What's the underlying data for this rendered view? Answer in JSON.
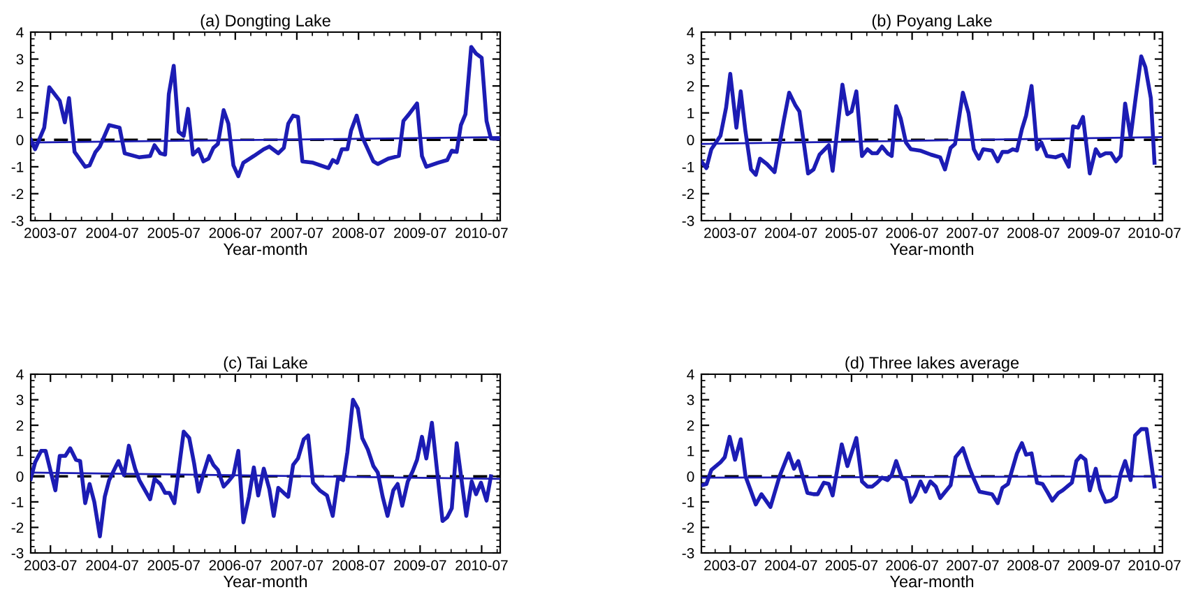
{
  "chart_data": [
    {
      "type": "line",
      "title": "(a) Dongting Lake",
      "xlabel": "Year-month",
      "xlim": [
        "2003-03-06",
        "2010-10-19"
      ],
      "ylim": [
        -3,
        4
      ],
      "yticks": [
        -3,
        -2,
        -1,
        0,
        1,
        2,
        3,
        4
      ],
      "xticks": [
        {
          "value": "2003-07-01",
          "label": "2003-07"
        },
        {
          "value": "2004-07-01",
          "label": "2004-07"
        },
        {
          "value": "2005-07-01",
          "label": "2005-07"
        },
        {
          "value": "2006-07-01",
          "label": "2006-07"
        },
        {
          "value": "2007-07-01",
          "label": "2007-07"
        },
        {
          "value": "2008-07-01",
          "label": "2008-07"
        },
        {
          "value": "2009-07-01",
          "label": "2009-07"
        },
        {
          "value": "2010-07-01",
          "label": "2010-07"
        }
      ],
      "ref_lines": [
        {
          "axis": "y",
          "value": 0,
          "color": "#000000",
          "line_style": "dashed"
        }
      ],
      "series": [
        {
          "color": "#1c1cb4",
          "x": [
            "2003-03-06",
            "2003-04-01",
            "2003-05-25",
            "2003-06-24",
            "2003-08-25",
            "2003-09-24",
            "2003-10-19",
            "2003-11-21",
            "2004-01-23",
            "2004-02-18",
            "2004-03-24",
            "2004-04-19",
            "2004-06-13",
            "2004-08-14",
            "2004-09-13",
            "2004-12-09",
            "2005-02-11",
            "2005-03-09",
            "2005-04-12",
            "2005-05-11",
            "2005-06-02",
            "2005-07-01",
            "2005-07-30",
            "2005-08-29",
            "2005-09-24",
            "2005-10-23",
            "2005-11-25",
            "2005-12-24",
            "2006-01-23",
            "2006-02-21",
            "2006-03-20",
            "2006-04-23",
            "2006-05-21",
            "2006-06-20",
            "2006-07-19",
            "2006-08-18",
            "2006-10-19",
            "2006-12-17",
            "2007-01-19",
            "2007-03-13",
            "2007-04-15",
            "2007-05-11",
            "2007-06-09",
            "2007-07-08",
            "2007-08-03",
            "2007-10-05",
            "2008-01-05",
            "2008-01-30",
            "2008-02-25",
            "2008-03-24",
            "2008-04-26",
            "2008-05-18",
            "2008-06-20",
            "2008-07-23",
            "2008-09-27",
            "2008-10-23",
            "2008-12-24",
            "2009-02-25",
            "2009-03-24",
            "2009-04-26",
            "2009-06-13",
            "2009-07-12",
            "2009-08-07",
            "2009-10-15",
            "2009-12-09",
            "2010-01-05",
            "2010-02-03",
            "2010-02-28",
            "2010-03-27",
            "2010-04-30",
            "2010-05-29",
            "2010-07-01",
            "2010-07-30",
            "2010-08-25",
            "2010-10-05"
          ],
          "values": [
            0.0,
            -0.35,
            0.45,
            1.95,
            1.45,
            0.65,
            1.55,
            -0.45,
            -1.0,
            -0.95,
            -0.45,
            -0.25,
            0.55,
            0.45,
            -0.5,
            -0.65,
            -0.6,
            -0.2,
            -0.5,
            -0.55,
            1.7,
            2.75,
            0.3,
            0.15,
            1.15,
            -0.55,
            -0.35,
            -0.8,
            -0.7,
            -0.3,
            -0.15,
            1.1,
            0.6,
            -0.95,
            -1.35,
            -0.85,
            -0.6,
            -0.35,
            -0.25,
            -0.5,
            -0.3,
            0.6,
            0.9,
            0.85,
            -0.8,
            -0.85,
            -1.05,
            -0.75,
            -0.85,
            -0.35,
            -0.35,
            0.35,
            0.9,
            0.1,
            -0.8,
            -0.9,
            -0.7,
            -0.6,
            0.7,
            0.95,
            1.35,
            -0.6,
            -1.0,
            -0.85,
            -0.75,
            -0.4,
            -0.45,
            0.55,
            0.95,
            3.45,
            3.2,
            3.05,
            0.7,
            0.05,
            0.05
          ]
        },
        {
          "type": "line",
          "color": "#1c1cb4",
          "x": [
            "2003-03-06",
            "2010-10-19"
          ],
          "values": [
            -0.1,
            0.1
          ]
        }
      ]
    },
    {
      "type": "line",
      "title": "(b) Poyang Lake",
      "xlabel": "Year-month",
      "xlim": [
        "2003-01-08",
        "2010-08-18"
      ],
      "ylim": [
        -3,
        4
      ],
      "yticks": [
        -3,
        -2,
        -1,
        0,
        1,
        2,
        3,
        4
      ],
      "xticks": [
        {
          "value": "2003-07-01",
          "label": "2003-07"
        },
        {
          "value": "2004-07-01",
          "label": "2004-07"
        },
        {
          "value": "2005-07-01",
          "label": "2005-07"
        },
        {
          "value": "2006-07-01",
          "label": "2006-07"
        },
        {
          "value": "2007-07-01",
          "label": "2007-07"
        },
        {
          "value": "2008-07-01",
          "label": "2008-07"
        },
        {
          "value": "2009-07-01",
          "label": "2009-07"
        },
        {
          "value": "2010-07-01",
          "label": "2010-07"
        }
      ],
      "ref_lines": [
        {
          "axis": "y",
          "value": 0,
          "color": "#000000",
          "line_style": "dashed"
        }
      ],
      "series": [
        {
          "color": "#1c1cb4",
          "x": [
            "2003-01-08",
            "2003-02-07",
            "2003-03-09",
            "2003-05-03",
            "2003-06-06",
            "2003-07-01",
            "2003-08-07",
            "2003-09-02",
            "2003-10-01",
            "2003-11-03",
            "2003-12-02",
            "2003-12-27",
            "2004-02-07",
            "2004-03-24",
            "2004-05-18",
            "2004-06-20",
            "2004-07-26",
            "2004-08-21",
            "2004-10-12",
            "2004-11-14",
            "2004-12-20",
            "2005-02-14",
            "2005-03-09",
            "2005-05-07",
            "2005-06-06",
            "2005-07-01",
            "2005-07-30",
            "2005-09-02",
            "2005-10-05",
            "2005-11-03",
            "2005-12-02",
            "2006-01-01",
            "2006-02-03",
            "2006-02-28",
            "2006-03-27",
            "2006-04-23",
            "2006-05-25",
            "2006-06-24",
            "2006-08-18",
            "2006-10-23",
            "2006-12-17",
            "2007-01-15",
            "2007-02-18",
            "2007-03-17",
            "2007-05-03",
            "2007-06-06",
            "2007-07-08",
            "2007-08-07",
            "2007-09-02",
            "2007-10-26",
            "2007-11-29",
            "2007-12-27",
            "2008-01-30",
            "2008-02-28",
            "2008-03-24",
            "2008-04-23",
            "2008-05-18",
            "2008-06-20",
            "2008-07-23",
            "2008-08-18",
            "2008-09-20",
            "2008-11-11",
            "2008-12-24",
            "2009-01-30",
            "2009-02-25",
            "2009-03-27",
            "2009-04-26",
            "2009-06-06",
            "2009-07-12",
            "2009-08-07",
            "2009-09-09",
            "2009-10-12",
            "2009-11-11",
            "2009-12-09",
            "2010-01-05",
            "2010-02-07",
            "2010-03-06",
            "2010-04-12",
            "2010-05-07",
            "2010-06-09",
            "2010-07-01"
          ],
          "values": [
            -0.8,
            -1.05,
            -0.35,
            0.15,
            1.2,
            2.45,
            0.45,
            1.8,
            0.3,
            -1.1,
            -1.3,
            -0.7,
            -0.9,
            -1.2,
            0.7,
            1.75,
            1.3,
            1.05,
            -1.25,
            -1.1,
            -0.55,
            -0.2,
            -1.15,
            2.05,
            0.95,
            1.05,
            1.8,
            -0.6,
            -0.35,
            -0.5,
            -0.5,
            -0.25,
            -0.5,
            -0.6,
            1.25,
            0.8,
            -0.1,
            -0.35,
            -0.4,
            -0.55,
            -0.65,
            -1.1,
            -0.3,
            -0.15,
            1.75,
            1.0,
            -0.35,
            -0.7,
            -0.35,
            -0.4,
            -0.8,
            -0.45,
            -0.45,
            -0.35,
            -0.4,
            0.4,
            0.9,
            2.0,
            -0.35,
            -0.1,
            -0.6,
            -0.65,
            -0.55,
            -1.0,
            0.5,
            0.45,
            0.85,
            -1.25,
            -0.35,
            -0.6,
            -0.5,
            -0.5,
            -0.8,
            -0.6,
            1.35,
            0.1,
            1.4,
            3.1,
            2.7,
            1.55,
            -0.85
          ]
        },
        {
          "type": "line",
          "color": "#1c1cb4",
          "x": [
            "2003-01-08",
            "2010-08-18"
          ],
          "values": [
            -0.15,
            0.1
          ]
        }
      ]
    },
    {
      "type": "line",
      "title": "(c) Tai Lake",
      "xlabel": "Year-month",
      "xlim": [
        "2003-03-06",
        "2010-10-19"
      ],
      "ylim": [
        -3,
        4
      ],
      "yticks": [
        -3,
        -2,
        -1,
        0,
        1,
        2,
        3,
        4
      ],
      "xticks": [
        {
          "value": "2003-07-01",
          "label": "2003-07"
        },
        {
          "value": "2004-07-01",
          "label": "2004-07"
        },
        {
          "value": "2005-07-01",
          "label": "2005-07"
        },
        {
          "value": "2006-07-01",
          "label": "2006-07"
        },
        {
          "value": "2007-07-01",
          "label": "2007-07"
        },
        {
          "value": "2008-07-01",
          "label": "2008-07"
        },
        {
          "value": "2009-07-01",
          "label": "2009-07"
        },
        {
          "value": "2010-07-01",
          "label": "2010-07"
        }
      ],
      "ref_lines": [
        {
          "axis": "y",
          "value": 0,
          "color": "#000000",
          "line_style": "dashed"
        }
      ],
      "series": [
        {
          "color": "#1c1cb4",
          "x": [
            "2003-03-06",
            "2003-04-01",
            "2003-05-07",
            "2003-06-02",
            "2003-07-30",
            "2003-08-25",
            "2003-09-27",
            "2003-10-26",
            "2003-11-29",
            "2003-12-24",
            "2004-01-23",
            "2004-02-18",
            "2004-03-17",
            "2004-04-19",
            "2004-05-18",
            "2004-06-13",
            "2004-08-07",
            "2004-09-09",
            "2004-10-08",
            "2004-11-14",
            "2004-12-09",
            "2005-02-11",
            "2005-03-09",
            "2005-04-12",
            "2005-05-11",
            "2005-06-06",
            "2005-07-05",
            "2005-08-29",
            "2005-10-01",
            "2005-10-30",
            "2005-11-25",
            "2005-12-24",
            "2006-01-26",
            "2006-02-21",
            "2006-03-20",
            "2006-04-23",
            "2006-05-21",
            "2006-06-20",
            "2006-07-19",
            "2006-08-18",
            "2006-09-20",
            "2006-10-19",
            "2006-11-14",
            "2006-12-17",
            "2007-01-19",
            "2007-02-14",
            "2007-03-13",
            "2007-04-15",
            "2007-05-11",
            "2007-06-09",
            "2007-07-08",
            "2007-08-11",
            "2007-09-06",
            "2007-10-05",
            "2007-11-14",
            "2007-12-27",
            "2008-01-30",
            "2008-03-02",
            "2008-04-01",
            "2008-04-26",
            "2008-05-29",
            "2008-06-27",
            "2008-07-23",
            "2008-08-25",
            "2008-09-27",
            "2008-10-23",
            "2008-11-21",
            "2008-12-20",
            "2009-01-23",
            "2009-02-18",
            "2009-03-17",
            "2009-04-19",
            "2009-05-18",
            "2009-06-13",
            "2009-07-12",
            "2009-08-07",
            "2009-09-09",
            "2009-11-11",
            "2009-12-09",
            "2010-01-05",
            "2010-02-03",
            "2010-04-01",
            "2010-05-03",
            "2010-05-29",
            "2010-06-27",
            "2010-07-30",
            "2010-08-25"
          ],
          "values": [
            -0.1,
            0.55,
            1.0,
            1.0,
            -0.55,
            0.8,
            0.8,
            1.1,
            0.65,
            0.6,
            -1.05,
            -0.3,
            -1.0,
            -2.35,
            -0.8,
            -0.15,
            0.6,
            0.05,
            1.2,
            0.3,
            -0.15,
            -0.9,
            -0.1,
            -0.3,
            -0.65,
            -0.65,
            -1.05,
            1.75,
            1.5,
            0.5,
            -0.6,
            0.1,
            0.8,
            0.45,
            0.25,
            -0.4,
            -0.2,
            0.05,
            1.0,
            -1.8,
            -0.8,
            0.35,
            -0.75,
            0.3,
            -0.5,
            -1.55,
            -0.45,
            -0.65,
            -0.8,
            0.45,
            0.7,
            1.45,
            1.6,
            -0.25,
            -0.55,
            -0.75,
            -1.55,
            -0.05,
            -0.15,
            0.95,
            3.0,
            2.65,
            1.5,
            1.05,
            0.4,
            0.15,
            -0.8,
            -1.55,
            -0.55,
            -0.3,
            -1.15,
            -0.2,
            0.2,
            0.65,
            1.55,
            0.7,
            2.1,
            -1.75,
            -1.6,
            -1.25,
            1.3,
            -1.55,
            -0.2,
            -0.7,
            -0.25,
            -0.95,
            0.0
          ]
        },
        {
          "type": "line",
          "color": "#1c1cb4",
          "x": [
            "2003-03-06",
            "2010-10-19"
          ],
          "values": [
            0.15,
            -0.1
          ]
        }
      ]
    },
    {
      "type": "line",
      "title": "(d) Three lakes average",
      "xlabel": "Year-month",
      "xlim": [
        "2003-01-08",
        "2010-08-18"
      ],
      "ylim": [
        -3,
        4
      ],
      "yticks": [
        -3,
        -2,
        -1,
        0,
        1,
        2,
        3,
        4
      ],
      "xticks": [
        {
          "value": "2003-07-01",
          "label": "2003-07"
        },
        {
          "value": "2004-07-01",
          "label": "2004-07"
        },
        {
          "value": "2005-07-01",
          "label": "2005-07"
        },
        {
          "value": "2006-07-01",
          "label": "2006-07"
        },
        {
          "value": "2007-07-01",
          "label": "2007-07"
        },
        {
          "value": "2008-07-01",
          "label": "2008-07"
        },
        {
          "value": "2009-07-01",
          "label": "2009-07"
        },
        {
          "value": "2010-07-01",
          "label": "2010-07"
        }
      ],
      "ref_lines": [
        {
          "axis": "y",
          "value": 0,
          "color": "#000000",
          "line_style": "dashed"
        }
      ],
      "series": [
        {
          "color": "#1c1cb4",
          "x": [
            "2003-01-08",
            "2003-02-07",
            "2003-03-09",
            "2003-05-03",
            "2003-05-29",
            "2003-06-27",
            "2003-07-30",
            "2003-09-02",
            "2003-10-01",
            "2003-12-02",
            "2004-01-05",
            "2004-02-28",
            "2004-04-23",
            "2004-06-17",
            "2004-07-19",
            "2004-08-14",
            "2004-10-08",
            "2004-11-14",
            "2004-12-09",
            "2005-01-15",
            "2005-02-14",
            "2005-03-09",
            "2005-05-03",
            "2005-06-06",
            "2005-07-30",
            "2005-09-02",
            "2005-10-05",
            "2005-11-03",
            "2005-12-02",
            "2006-01-01",
            "2006-02-03",
            "2006-02-28",
            "2006-03-27",
            "2006-04-30",
            "2006-05-25",
            "2006-06-24",
            "2006-07-19",
            "2006-08-21",
            "2006-09-20",
            "2006-10-19",
            "2006-11-21",
            "2006-12-17",
            "2007-02-18",
            "2007-03-20",
            "2007-05-03",
            "2007-06-13",
            "2007-07-08",
            "2007-08-11",
            "2007-10-26",
            "2007-11-29",
            "2007-12-27",
            "2008-01-30",
            "2008-03-24",
            "2008-04-23",
            "2008-05-18",
            "2008-06-20",
            "2008-07-23",
            "2008-08-25",
            "2008-09-27",
            "2008-10-23",
            "2008-11-29",
            "2008-12-24",
            "2009-02-18",
            "2009-03-17",
            "2009-04-12",
            "2009-05-11",
            "2009-06-06",
            "2009-07-12",
            "2009-08-07",
            "2009-09-09",
            "2009-10-12",
            "2009-11-11",
            "2009-12-09",
            "2010-01-05",
            "2010-02-07",
            "2010-03-06",
            "2010-04-12",
            "2010-05-14",
            "2010-07-01"
          ],
          "values": [
            -0.35,
            -0.3,
            0.25,
            0.55,
            0.75,
            1.55,
            0.65,
            1.45,
            0.0,
            -1.1,
            -0.7,
            -1.2,
            0.0,
            0.9,
            0.3,
            0.6,
            -0.65,
            -0.7,
            -0.7,
            -0.25,
            -0.3,
            -0.75,
            1.25,
            0.4,
            1.5,
            -0.2,
            -0.4,
            -0.4,
            -0.25,
            -0.05,
            -0.15,
            0.05,
            0.6,
            -0.05,
            -0.15,
            -1.0,
            -0.75,
            -0.2,
            -0.6,
            -0.2,
            -0.4,
            -0.85,
            -0.35,
            0.75,
            1.1,
            0.3,
            -0.1,
            -0.6,
            -0.7,
            -1.05,
            -0.45,
            -0.3,
            0.9,
            1.3,
            0.85,
            0.9,
            -0.25,
            -0.3,
            -0.65,
            -0.95,
            -0.65,
            -0.55,
            -0.25,
            0.6,
            0.8,
            0.65,
            -0.55,
            0.3,
            -0.5,
            -1.0,
            -0.95,
            -0.8,
            0.1,
            0.6,
            -0.15,
            1.6,
            1.85,
            1.85,
            -0.4
          ]
        },
        {
          "type": "line",
          "color": "#1c1cb4",
          "x": [
            "2003-01-08",
            "2010-08-18"
          ],
          "values": [
            -0.05,
            0.0
          ]
        }
      ]
    }
  ]
}
